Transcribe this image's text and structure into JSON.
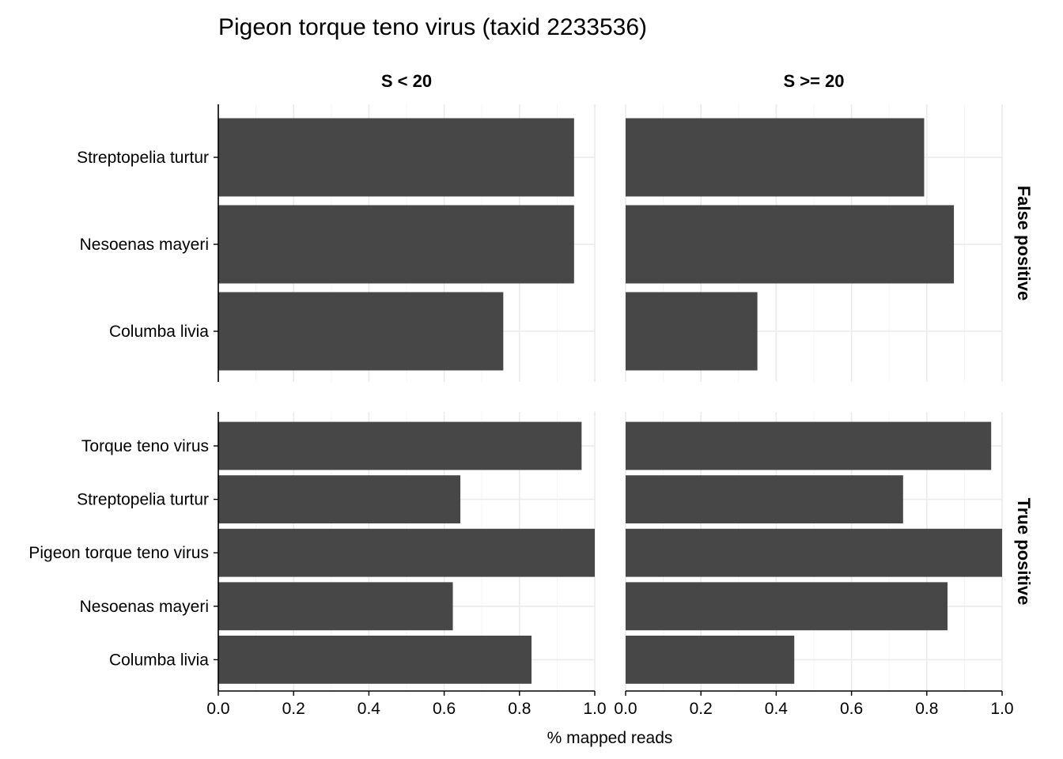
{
  "chart_data": {
    "type": "bar",
    "orientation": "horizontal",
    "title": "Pigeon torque teno virus (taxid 2233536)",
    "xlabel": "% mapped reads",
    "ylabel": "",
    "xlim": [
      0,
      1
    ],
    "x_ticks": [
      "0.0",
      "0.2",
      "0.4",
      "0.6",
      "0.8",
      "1.0"
    ],
    "x_tick_values": [
      0,
      0.2,
      0.4,
      0.6,
      0.8,
      1.0
    ],
    "grid": true,
    "bar_color": "#474747",
    "facet_columns": [
      "S < 20",
      "S >= 20"
    ],
    "facet_rows": [
      {
        "label": "False positive",
        "categories": [
          "Streptopelia turtur",
          "Nesoenas mayeri",
          "Columba livia"
        ],
        "panels": [
          {
            "column": "S < 20",
            "values": [
              0.945,
              0.945,
              0.757
            ]
          },
          {
            "column": "S >= 20",
            "values": [
              0.793,
              0.872,
              0.35
            ]
          }
        ]
      },
      {
        "label": "True positive",
        "categories": [
          "Torque teno virus",
          "Streptopelia turtur",
          "Pigeon torque teno virus",
          "Nesoenas mayeri",
          "Columba livia"
        ],
        "panels": [
          {
            "column": "S < 20",
            "values": [
              0.965,
              0.643,
              1.0,
              0.623,
              0.832
            ]
          },
          {
            "column": "S >= 20",
            "values": [
              0.971,
              0.737,
              1.0,
              0.855,
              0.448
            ]
          }
        ]
      }
    ]
  }
}
